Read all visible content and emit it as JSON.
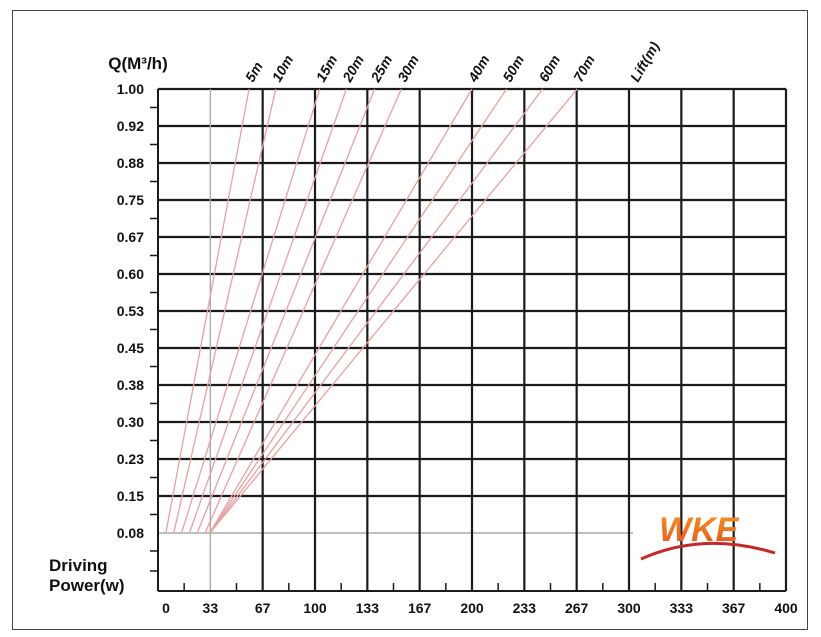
{
  "chart_data": {
    "type": "line",
    "ylabel": "Q(M³/h)",
    "xlabel": "Driving Power(w)",
    "xlabel_lines": [
      "Driving",
      "Power(w)"
    ],
    "y_tick_labels": [
      "1.00",
      "0.92",
      "0.88",
      "0.75",
      "0.67",
      "0.60",
      "0.53",
      "0.45",
      "0.38",
      "0.30",
      "0.23",
      "0.15",
      "0.08"
    ],
    "x_tick_labels": [
      "0",
      "33",
      "67",
      "100",
      "133",
      "167",
      "200",
      "233",
      "267",
      "300",
      "333",
      "367",
      "400"
    ],
    "xlim": [
      0,
      400
    ],
    "grid": true,
    "series_label_title": "Lift(m)",
    "series": [
      {
        "name": "5m",
        "x": [
          5,
          58
        ],
        "y": [
          0.08,
          1.0
        ]
      },
      {
        "name": "10m",
        "x": [
          10,
          75
        ],
        "y": [
          0.08,
          1.0
        ]
      },
      {
        "name": "15m",
        "x": [
          15,
          103
        ],
        "y": [
          0.08,
          1.0
        ]
      },
      {
        "name": "20m",
        "x": [
          20,
          120
        ],
        "y": [
          0.08,
          1.0
        ]
      },
      {
        "name": "25m",
        "x": [
          25,
          138
        ],
        "y": [
          0.08,
          1.0
        ]
      },
      {
        "name": "30m",
        "x": [
          30,
          155
        ],
        "y": [
          0.08,
          1.0
        ]
      },
      {
        "name": "40m",
        "x": [
          33,
          200
        ],
        "y": [
          0.08,
          1.0
        ]
      },
      {
        "name": "50m",
        "x": [
          33,
          222
        ],
        "y": [
          0.08,
          1.0
        ]
      },
      {
        "name": "60m",
        "x": [
          33,
          245
        ],
        "y": [
          0.08,
          1.0
        ]
      },
      {
        "name": "70m",
        "x": [
          33,
          267
        ],
        "y": [
          0.08,
          1.0
        ]
      }
    ],
    "colors": {
      "grid": "#1a1a1a",
      "lift_line": "#e8a0a0",
      "text": "#111111"
    }
  },
  "logo": {
    "text": "WKE",
    "color_top": "#f7941d",
    "color_bottom": "#e8531f",
    "swoosh": "#c62828"
  }
}
